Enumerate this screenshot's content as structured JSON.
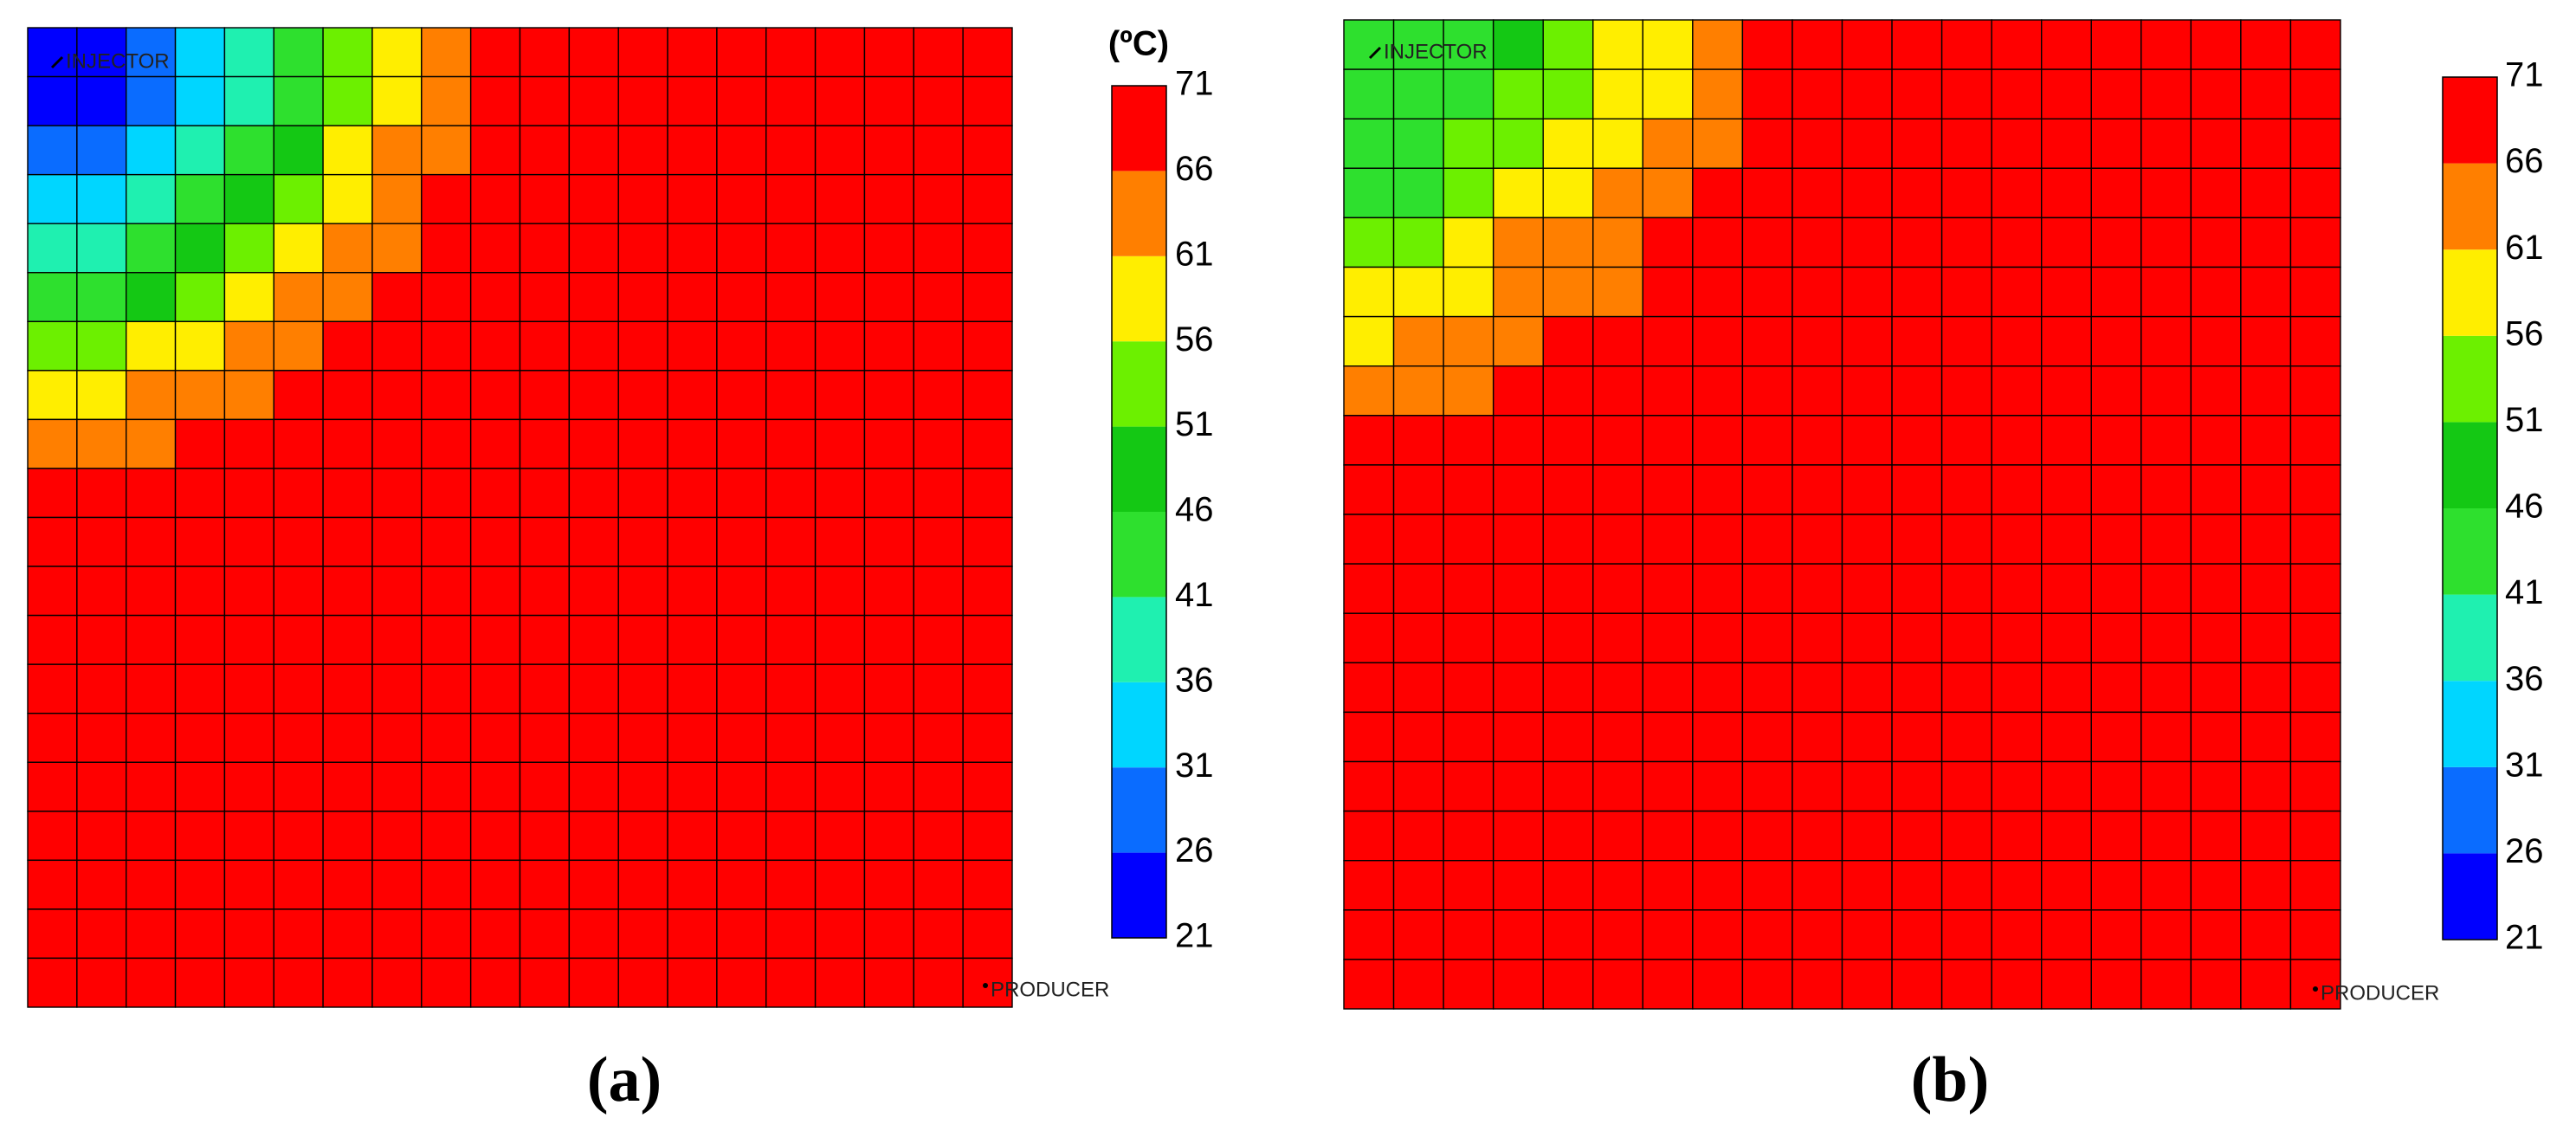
{
  "chart_data": [
    {
      "type": "heatmap",
      "caption": "(a)",
      "colorbar_title": "(ºC)",
      "injector_label": "INJECTOR",
      "producer_label": "PRODUCER",
      "zlim": [
        21,
        71
      ],
      "zticks": [
        21,
        26,
        31,
        36,
        41,
        46,
        51,
        56,
        61,
        66,
        71
      ],
      "colors": [
        "#0000ff",
        "#0a6cff",
        "#00d6ff",
        "#1ff0b0",
        "#2ee02e",
        "#14c814",
        "#6cf000",
        "#ffee00",
        "#ff7f00",
        "#ff0000"
      ],
      "z": [
        [
          24,
          24,
          29,
          34,
          39,
          44,
          54,
          59,
          64,
          69,
          69,
          69,
          69,
          69,
          69,
          69,
          69,
          69,
          69,
          69
        ],
        [
          24,
          24,
          29,
          34,
          39,
          44,
          54,
          59,
          64,
          69,
          69,
          69,
          69,
          69,
          69,
          69,
          69,
          69,
          69,
          69
        ],
        [
          29,
          29,
          34,
          39,
          44,
          49,
          59,
          64,
          64,
          69,
          69,
          69,
          69,
          69,
          69,
          69,
          69,
          69,
          69,
          69
        ],
        [
          34,
          34,
          39,
          44,
          49,
          54,
          59,
          64,
          69,
          69,
          69,
          69,
          69,
          69,
          69,
          69,
          69,
          69,
          69,
          69
        ],
        [
          39,
          39,
          44,
          49,
          54,
          59,
          64,
          64,
          69,
          69,
          69,
          69,
          69,
          69,
          69,
          69,
          69,
          69,
          69,
          69
        ],
        [
          44,
          44,
          49,
          54,
          59,
          64,
          64,
          69,
          69,
          69,
          69,
          69,
          69,
          69,
          69,
          69,
          69,
          69,
          69,
          69
        ],
        [
          54,
          54,
          59,
          59,
          64,
          64,
          69,
          69,
          69,
          69,
          69,
          69,
          69,
          69,
          69,
          69,
          69,
          69,
          69,
          69
        ],
        [
          59,
          59,
          64,
          64,
          64,
          69,
          69,
          69,
          69,
          69,
          69,
          69,
          69,
          69,
          69,
          69,
          69,
          69,
          69,
          69
        ],
        [
          64,
          64,
          64,
          69,
          69,
          69,
          69,
          69,
          69,
          69,
          69,
          69,
          69,
          69,
          69,
          69,
          69,
          69,
          69,
          69
        ],
        [
          69,
          69,
          69,
          69,
          69,
          69,
          69,
          69,
          69,
          69,
          69,
          69,
          69,
          69,
          69,
          69,
          69,
          69,
          69,
          69
        ],
        [
          69,
          69,
          69,
          69,
          69,
          69,
          69,
          69,
          69,
          69,
          69,
          69,
          69,
          69,
          69,
          69,
          69,
          69,
          69,
          69
        ],
        [
          69,
          69,
          69,
          69,
          69,
          69,
          69,
          69,
          69,
          69,
          69,
          69,
          69,
          69,
          69,
          69,
          69,
          69,
          69,
          69
        ],
        [
          69,
          69,
          69,
          69,
          69,
          69,
          69,
          69,
          69,
          69,
          69,
          69,
          69,
          69,
          69,
          69,
          69,
          69,
          69,
          69
        ],
        [
          69,
          69,
          69,
          69,
          69,
          69,
          69,
          69,
          69,
          69,
          69,
          69,
          69,
          69,
          69,
          69,
          69,
          69,
          69,
          69
        ],
        [
          69,
          69,
          69,
          69,
          69,
          69,
          69,
          69,
          69,
          69,
          69,
          69,
          69,
          69,
          69,
          69,
          69,
          69,
          69,
          69
        ],
        [
          69,
          69,
          69,
          69,
          69,
          69,
          69,
          69,
          69,
          69,
          69,
          69,
          69,
          69,
          69,
          69,
          69,
          69,
          69,
          69
        ],
        [
          69,
          69,
          69,
          69,
          69,
          69,
          69,
          69,
          69,
          69,
          69,
          69,
          69,
          69,
          69,
          69,
          69,
          69,
          69,
          69
        ],
        [
          69,
          69,
          69,
          69,
          69,
          69,
          69,
          69,
          69,
          69,
          69,
          69,
          69,
          69,
          69,
          69,
          69,
          69,
          69,
          69
        ],
        [
          69,
          69,
          69,
          69,
          69,
          69,
          69,
          69,
          69,
          69,
          69,
          69,
          69,
          69,
          69,
          69,
          69,
          69,
          69,
          69
        ],
        [
          69,
          69,
          69,
          69,
          69,
          69,
          69,
          69,
          69,
          69,
          69,
          69,
          69,
          69,
          69,
          69,
          69,
          69,
          69,
          69
        ]
      ]
    },
    {
      "type": "heatmap",
      "caption": "(b)",
      "injector_label": "INJECTOR",
      "producer_label": "PRODUCER",
      "zlim": [
        21,
        71
      ],
      "zticks": [
        21,
        26,
        31,
        36,
        41,
        46,
        51,
        56,
        61,
        66,
        71
      ],
      "colors": [
        "#0000ff",
        "#0a6cff",
        "#00d6ff",
        "#1ff0b0",
        "#2ee02e",
        "#14c814",
        "#6cf000",
        "#ffee00",
        "#ff7f00",
        "#ff0000"
      ],
      "z": [
        [
          44,
          44,
          44,
          49,
          54,
          59,
          59,
          64,
          69,
          69,
          69,
          69,
          69,
          69,
          69,
          69,
          69,
          69,
          69,
          69
        ],
        [
          44,
          44,
          44,
          54,
          54,
          59,
          59,
          64,
          69,
          69,
          69,
          69,
          69,
          69,
          69,
          69,
          69,
          69,
          69,
          69
        ],
        [
          44,
          44,
          54,
          54,
          59,
          59,
          64,
          64,
          69,
          69,
          69,
          69,
          69,
          69,
          69,
          69,
          69,
          69,
          69,
          69
        ],
        [
          44,
          44,
          54,
          59,
          59,
          64,
          64,
          69,
          69,
          69,
          69,
          69,
          69,
          69,
          69,
          69,
          69,
          69,
          69,
          69
        ],
        [
          54,
          54,
          59,
          64,
          64,
          64,
          69,
          69,
          69,
          69,
          69,
          69,
          69,
          69,
          69,
          69,
          69,
          69,
          69,
          69
        ],
        [
          59,
          59,
          59,
          64,
          64,
          64,
          69,
          69,
          69,
          69,
          69,
          69,
          69,
          69,
          69,
          69,
          69,
          69,
          69,
          69
        ],
        [
          59,
          64,
          64,
          64,
          69,
          69,
          69,
          69,
          69,
          69,
          69,
          69,
          69,
          69,
          69,
          69,
          69,
          69,
          69,
          69
        ],
        [
          64,
          64,
          64,
          69,
          69,
          69,
          69,
          69,
          69,
          69,
          69,
          69,
          69,
          69,
          69,
          69,
          69,
          69,
          69,
          69
        ],
        [
          69,
          69,
          69,
          69,
          69,
          69,
          69,
          69,
          69,
          69,
          69,
          69,
          69,
          69,
          69,
          69,
          69,
          69,
          69,
          69
        ],
        [
          69,
          69,
          69,
          69,
          69,
          69,
          69,
          69,
          69,
          69,
          69,
          69,
          69,
          69,
          69,
          69,
          69,
          69,
          69,
          69
        ],
        [
          69,
          69,
          69,
          69,
          69,
          69,
          69,
          69,
          69,
          69,
          69,
          69,
          69,
          69,
          69,
          69,
          69,
          69,
          69,
          69
        ],
        [
          69,
          69,
          69,
          69,
          69,
          69,
          69,
          69,
          69,
          69,
          69,
          69,
          69,
          69,
          69,
          69,
          69,
          69,
          69,
          69
        ],
        [
          69,
          69,
          69,
          69,
          69,
          69,
          69,
          69,
          69,
          69,
          69,
          69,
          69,
          69,
          69,
          69,
          69,
          69,
          69,
          69
        ],
        [
          69,
          69,
          69,
          69,
          69,
          69,
          69,
          69,
          69,
          69,
          69,
          69,
          69,
          69,
          69,
          69,
          69,
          69,
          69,
          69
        ],
        [
          69,
          69,
          69,
          69,
          69,
          69,
          69,
          69,
          69,
          69,
          69,
          69,
          69,
          69,
          69,
          69,
          69,
          69,
          69,
          69
        ],
        [
          69,
          69,
          69,
          69,
          69,
          69,
          69,
          69,
          69,
          69,
          69,
          69,
          69,
          69,
          69,
          69,
          69,
          69,
          69,
          69
        ],
        [
          69,
          69,
          69,
          69,
          69,
          69,
          69,
          69,
          69,
          69,
          69,
          69,
          69,
          69,
          69,
          69,
          69,
          69,
          69,
          69
        ],
        [
          69,
          69,
          69,
          69,
          69,
          69,
          69,
          69,
          69,
          69,
          69,
          69,
          69,
          69,
          69,
          69,
          69,
          69,
          69,
          69
        ],
        [
          69,
          69,
          69,
          69,
          69,
          69,
          69,
          69,
          69,
          69,
          69,
          69,
          69,
          69,
          69,
          69,
          69,
          69,
          69,
          69
        ],
        [
          69,
          69,
          69,
          69,
          69,
          69,
          69,
          69,
          69,
          69,
          69,
          69,
          69,
          69,
          69,
          69,
          69,
          69,
          69,
          69
        ]
      ]
    }
  ]
}
